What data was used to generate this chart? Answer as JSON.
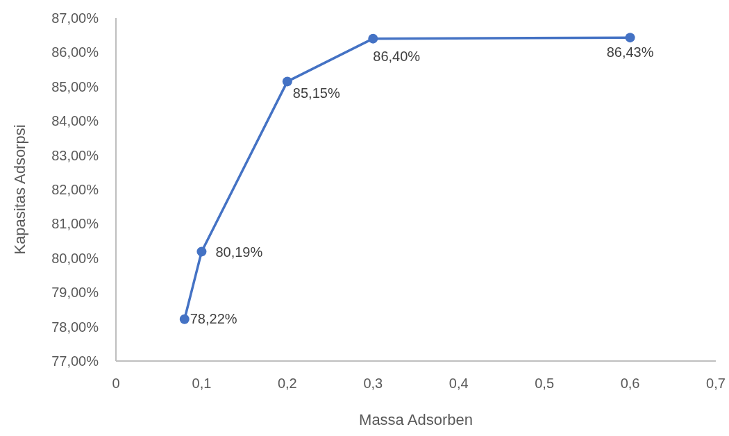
{
  "chart_data": {
    "type": "line",
    "xlabel": "Massa Adsorben",
    "ylabel": "Kapasitas Adsorpsi",
    "x": [
      0.08,
      0.1,
      0.2,
      0.3,
      0.6
    ],
    "series": [
      {
        "color": "#4472c4",
        "values": [
          78.22,
          80.19,
          85.15,
          86.4,
          86.43
        ],
        "value_labels": [
          "78,22%",
          "80,19%",
          "85,15%",
          "86,40%",
          "86,43%"
        ]
      }
    ],
    "xlim": [
      0,
      0.7
    ],
    "xticks": [
      0,
      {
        "value": 0.1,
        "label": "0,1"
      },
      {
        "value": 0.2,
        "label": "0,2"
      },
      {
        "value": 0.3,
        "label": "0,3"
      },
      {
        "value": 0.4,
        "label": "0,4"
      },
      {
        "value": 0.5,
        "label": "0,5"
      },
      {
        "value": 0.6,
        "label": "0,6"
      },
      {
        "value": 0.7,
        "label": "0,7"
      }
    ],
    "ylim": [
      77,
      87
    ],
    "yticks": [
      {
        "value": 77,
        "label": "77,00%"
      },
      {
        "value": 78,
        "label": "78,00%"
      },
      {
        "value": 79,
        "label": "79,00%"
      },
      {
        "value": 80,
        "label": "80,00%"
      },
      {
        "value": 81,
        "label": "81,00%"
      },
      {
        "value": 82,
        "label": "82,00%"
      },
      {
        "value": 83,
        "label": "83,00%"
      },
      {
        "value": 84,
        "label": "84,00%"
      },
      {
        "value": 85,
        "label": "85,00%"
      },
      {
        "value": 86,
        "label": "86,00%"
      },
      {
        "value": 87,
        "label": "87,00%"
      }
    ],
    "marker": "circle",
    "line_style": "solid"
  }
}
